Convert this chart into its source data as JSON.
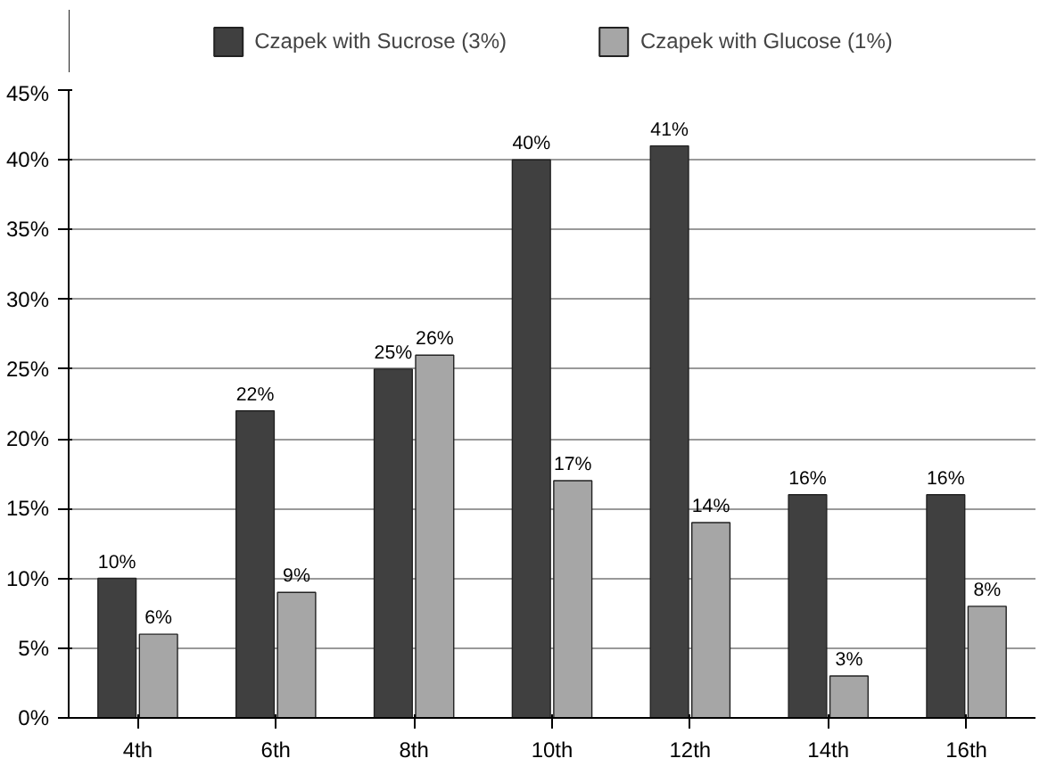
{
  "chart_data": {
    "type": "bar",
    "categories": [
      "4th",
      "6th",
      "8th",
      "10th",
      "12th",
      "14th",
      "16th"
    ],
    "series": [
      {
        "name": "Czapek with Sucrose (3%)",
        "color": "#404040",
        "values": [
          10,
          22,
          25,
          40,
          41,
          16,
          16
        ],
        "value_labels": [
          "10%",
          "22%",
          "25%",
          "40%",
          "41%",
          "16%",
          "16%"
        ]
      },
      {
        "name": "Czapek with Glucose (1%)",
        "color": "#a6a6a6",
        "values": [
          6,
          9,
          26,
          17,
          14,
          3,
          8
        ],
        "value_labels": [
          "6%",
          "9%",
          "26%",
          "17%",
          "14%",
          "3%",
          "8%"
        ]
      }
    ],
    "ylim": [
      0,
      45
    ],
    "yticks": [
      {
        "value": 0,
        "label": "0%"
      },
      {
        "value": 5,
        "label": "5%"
      },
      {
        "value": 10,
        "label": "10%"
      },
      {
        "value": 15,
        "label": "15%"
      },
      {
        "value": 20,
        "label": "20%"
      },
      {
        "value": 25,
        "label": "25%"
      },
      {
        "value": 30,
        "label": "30%"
      },
      {
        "value": 35,
        "label": "35%"
      },
      {
        "value": 40,
        "label": "40%"
      },
      {
        "value": 45,
        "label": "45%"
      }
    ],
    "grid": "y",
    "legend": "top"
  }
}
